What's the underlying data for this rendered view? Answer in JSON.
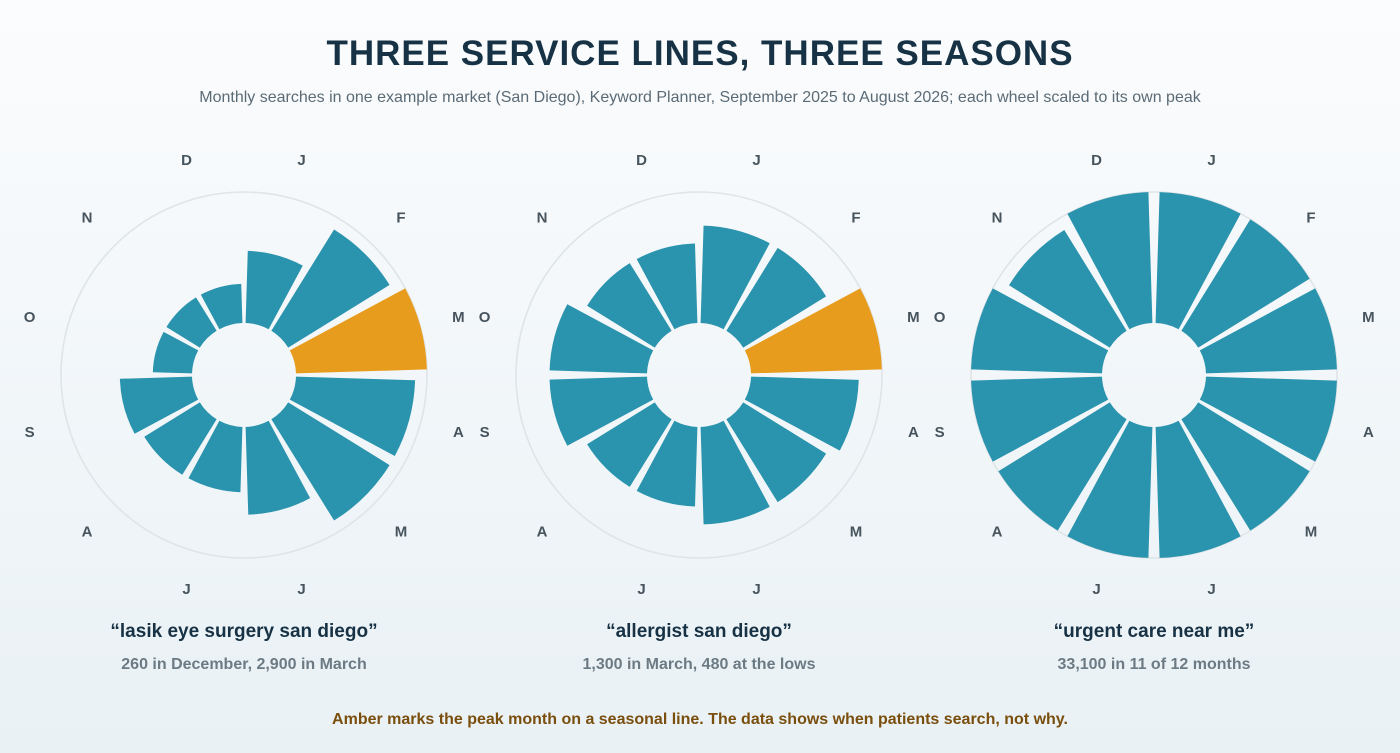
{
  "header": {
    "title": "THREE SERVICE LINES, THREE SEASONS",
    "subtitle": "Monthly searches in one example market (San Diego), Keyword Planner, September 2025 to August 2026; each wheel scaled to its own peak"
  },
  "footnote": "Amber marks the peak month on a seasonal line. The data shows when patients search, not why.",
  "colors": {
    "bar": "#2a93ad",
    "peak": "#e89c1e",
    "ring": "#dfe4e7"
  },
  "chart_data": [
    {
      "type": "radial-bar",
      "title": "“lasik eye surgery san diego”",
      "subtitle": "260 in December, 2,900 in March",
      "month_labels": [
        "J",
        "F",
        "M",
        "A",
        "M",
        "J",
        "J",
        "A",
        "S",
        "O",
        "N",
        "D"
      ],
      "values": [
        880,
        2400,
        2900,
        2400,
        2400,
        1300,
        720,
        720,
        880,
        260,
        260,
        260
      ],
      "peak_index": 2,
      "max": 2900
    },
    {
      "type": "radial-bar",
      "title": "“allergist san diego”",
      "subtitle": "1,300 in March, 480 at the lows",
      "month_labels": [
        "J",
        "F",
        "M",
        "A",
        "M",
        "J",
        "J",
        "A",
        "S",
        "O",
        "N",
        "D"
      ],
      "values": [
        720,
        720,
        1300,
        880,
        720,
        720,
        480,
        480,
        720,
        720,
        480,
        480
      ],
      "peak_index": 2,
      "max": 1300
    },
    {
      "type": "radial-bar",
      "title": "“urgent care near me”",
      "subtitle": "33,100 in 11 of 12 months",
      "month_labels": [
        "J",
        "F",
        "M",
        "A",
        "M",
        "J",
        "J",
        "A",
        "S",
        "O",
        "N",
        "D"
      ],
      "values": [
        33100,
        33100,
        33100,
        33100,
        33100,
        33100,
        33100,
        33100,
        33100,
        33100,
        27100,
        33100
      ],
      "peak_index": null,
      "max": 33100
    }
  ]
}
